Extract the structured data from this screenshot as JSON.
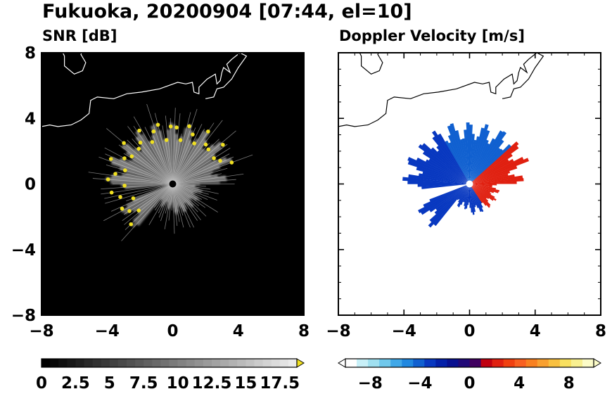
{
  "figure": {
    "title": "Fukuoka, 20200904 [07:44, el=10]"
  },
  "chart_data": [
    {
      "type": "heatmap",
      "title": "SNR [dB]",
      "xlabel": "",
      "ylabel": "",
      "xlim": [
        -8,
        8
      ],
      "ylim": [
        -8,
        8
      ],
      "xticks": [
        -8,
        -4,
        0,
        4,
        8
      ],
      "yticks": [
        -8,
        -4,
        0,
        4,
        8
      ],
      "xtick_labels": [
        "−8",
        "−4",
        "0",
        "4",
        "8"
      ],
      "ytick_labels": [
        "−8",
        "−4",
        "0",
        "4",
        "8"
      ],
      "colorbar": {
        "min": 0,
        "max": 18.75,
        "ticks": [
          0,
          2.5,
          5,
          7.5,
          10,
          12.5,
          15,
          17.5
        ],
        "tick_labels": [
          "0",
          "2.5",
          "5",
          "7.5",
          "10",
          "12.5",
          "15",
          "17.5"
        ],
        "colors_low_high": [
          "#000000",
          "#ffffff"
        ],
        "over_color": "#f0e020",
        "extend": "max"
      },
      "background_color": "#000000",
      "radar_site": [
        0,
        0
      ]
    },
    {
      "type": "heatmap",
      "title": "Doppler Velocity [m/s]",
      "xlabel": "",
      "ylabel": "",
      "xlim": [
        -8,
        8
      ],
      "ylim": [
        -8,
        8
      ],
      "xticks": [
        -8,
        -4,
        0,
        4,
        8
      ],
      "yticks": [
        -8,
        -4,
        0,
        4,
        8
      ],
      "xtick_labels": [
        "−8",
        "−4",
        "0",
        "4",
        "8"
      ],
      "ytick_labels": [
        "−8",
        "−4",
        "0",
        "4",
        "8"
      ],
      "colorbar": {
        "min": -10,
        "max": 10,
        "ticks": [
          -8,
          -4,
          0,
          4,
          8
        ],
        "tick_labels": [
          "−8",
          "−4",
          "0",
          "4",
          "8"
        ],
        "colors": [
          "#ffffff",
          "#c8f0f8",
          "#a0e0f0",
          "#70c8ec",
          "#40a8e8",
          "#2088e0",
          "#1060d0",
          "#0838c0",
          "#0420a8",
          "#081090",
          "#200878",
          "#400060",
          "#c00010",
          "#e02010",
          "#f04010",
          "#f86020",
          "#f88020",
          "#f8a030",
          "#f8c040",
          "#f8e060",
          "#f8f090",
          "#fcfcc8"
        ],
        "extend": "both"
      },
      "background_color": "#ffffff",
      "radar_site": [
        0,
        0
      ]
    }
  ]
}
